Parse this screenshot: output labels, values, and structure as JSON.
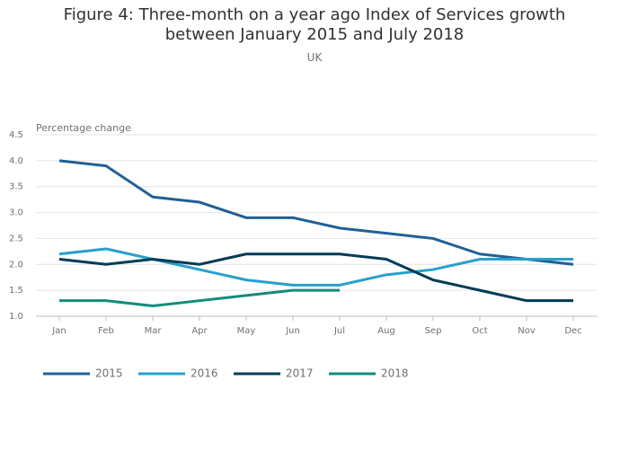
{
  "chart_data": {
    "type": "line",
    "title": "Figure 4: Three-month on a year ago Index of Services growth between January 2015 and July 2018",
    "subtitle": "UK",
    "y_label": "Percentage change",
    "categories": [
      "Jan",
      "Feb",
      "Mar",
      "Apr",
      "May",
      "Jun",
      "Jul",
      "Aug",
      "Sep",
      "Oct",
      "Nov",
      "Dec"
    ],
    "series": [
      {
        "name": "2015",
        "color": "#206095",
        "values": [
          4.0,
          3.9,
          3.3,
          3.2,
          2.9,
          2.9,
          2.7,
          2.6,
          2.5,
          2.2,
          2.1,
          2.0
        ]
      },
      {
        "name": "2016",
        "color": "#27a0cc",
        "values": [
          2.2,
          2.3,
          2.1,
          1.9,
          1.7,
          1.6,
          1.6,
          1.8,
          1.9,
          2.1,
          2.1,
          2.1
        ]
      },
      {
        "name": "2017",
        "color": "#003c57",
        "values": [
          2.1,
          2.0,
          2.1,
          2.0,
          2.2,
          2.2,
          2.2,
          2.1,
          1.7,
          1.5,
          1.3,
          1.3
        ]
      },
      {
        "name": "2018",
        "color": "#118c7b",
        "values": [
          1.3,
          1.3,
          1.2,
          1.3,
          1.4,
          1.5,
          1.5,
          null,
          null,
          null,
          null,
          null
        ]
      }
    ],
    "ylim": [
      1,
      4.5
    ],
    "yticks": [
      {
        "value": 1,
        "label": "1.0"
      },
      1.5,
      {
        "value": 2,
        "label": "2.0"
      },
      2.5,
      {
        "value": 3,
        "label": "3.0"
      },
      3.5,
      {
        "value": 4,
        "label": "4.0"
      },
      4.5
    ],
    "grid": true
  }
}
